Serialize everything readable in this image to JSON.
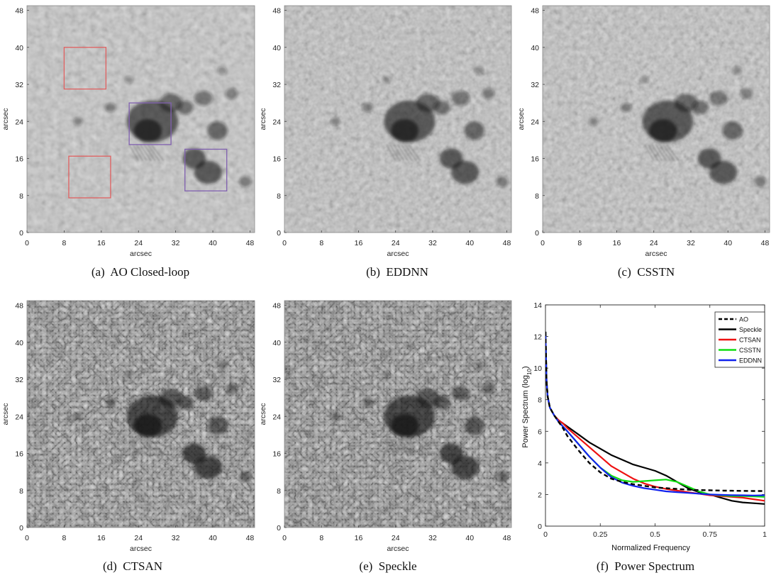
{
  "figure": {
    "captions": {
      "a": "(a)  AO Closed-loop",
      "b": "(b)  EDDNN",
      "c": "(c)  CSSTN",
      "d": "(d)  CTSAN",
      "e": "(e)  Speckle",
      "f": "(f)  Power Spectrum"
    }
  },
  "colors": {
    "AO": "#000000",
    "Speckle": "#000000",
    "CTSAN": "#ee1111",
    "CSSTN": "#11dd11",
    "EDDNN": "#1122ee",
    "roi_red": "#e06060",
    "roi_purple": "#8060b0"
  },
  "chart_data": [
    {
      "type": "heatmap",
      "panel": "a",
      "image": "solar active region (sunspot) observation",
      "xlabel": "arcsec",
      "ylabel": "arcsec",
      "xlim": [
        0,
        49
      ],
      "ylim": [
        0,
        49
      ],
      "xticks": [
        0,
        8,
        16,
        24,
        32,
        40,
        48
      ],
      "yticks": [
        0,
        8,
        16,
        24,
        32,
        40,
        48
      ],
      "annotations": [
        {
          "kind": "box",
          "color": "red",
          "x": [
            8,
            17
          ],
          "y": [
            31,
            40
          ]
        },
        {
          "kind": "box",
          "color": "red",
          "x": [
            9,
            18
          ],
          "y": [
            7.5,
            16.5
          ]
        },
        {
          "kind": "box",
          "color": "purple",
          "x": [
            22,
            31
          ],
          "y": [
            19,
            28
          ]
        },
        {
          "kind": "box",
          "color": "purple",
          "x": [
            34,
            43
          ],
          "y": [
            9,
            18
          ]
        }
      ]
    },
    {
      "type": "heatmap",
      "panel": "b",
      "image": "solar active region (sunspot) observation",
      "xlabel": "arcsec",
      "ylabel": "arcsec",
      "xlim": [
        0,
        49
      ],
      "ylim": [
        0,
        49
      ],
      "xticks": [
        0,
        8,
        16,
        24,
        32,
        40,
        48
      ],
      "yticks": [
        0,
        8,
        16,
        24,
        32,
        40,
        48
      ]
    },
    {
      "type": "heatmap",
      "panel": "c",
      "image": "solar active region (sunspot) observation",
      "xlabel": "arcsec",
      "ylabel": "arcsec",
      "xlim": [
        0,
        49
      ],
      "ylim": [
        0,
        49
      ],
      "xticks": [
        0,
        8,
        16,
        24,
        32,
        40,
        48
      ],
      "yticks": [
        0,
        8,
        16,
        24,
        32,
        40,
        48
      ]
    },
    {
      "type": "heatmap",
      "panel": "d",
      "image": "solar active region (sunspot) observation",
      "xlabel": "arcsec",
      "ylabel": "arcsec",
      "xlim": [
        0,
        49
      ],
      "ylim": [
        0,
        49
      ],
      "xticks": [
        0,
        8,
        16,
        24,
        32,
        40,
        48
      ],
      "yticks": [
        0,
        8,
        16,
        24,
        32,
        40,
        48
      ]
    },
    {
      "type": "heatmap",
      "panel": "e",
      "image": "solar active region (sunspot) observation",
      "xlabel": "arcsec",
      "ylabel": "arcsec",
      "xlim": [
        0,
        49
      ],
      "ylim": [
        0,
        49
      ],
      "xticks": [
        0,
        8,
        16,
        24,
        32,
        40,
        48
      ],
      "yticks": [
        0,
        8,
        16,
        24,
        32,
        40,
        48
      ]
    },
    {
      "type": "line",
      "panel": "f",
      "xlabel": "Normalized Frequency",
      "ylabel": "Power Spectrum (log",
      "ylabel_sub": "10",
      "ylabel_end": ")",
      "xlim": [
        0,
        1
      ],
      "ylim": [
        0,
        14
      ],
      "xticks": [
        0,
        0.25,
        0.5,
        0.75,
        1
      ],
      "xtick_labels": [
        "0",
        "0.25",
        "0.5",
        "0.75",
        "1"
      ],
      "yticks": [
        0,
        2,
        4,
        6,
        8,
        10,
        12,
        14
      ],
      "legend": "top-right",
      "series": [
        {
          "name": "AO",
          "style": "dashed",
          "x": [
            0,
            0.005,
            0.01,
            0.02,
            0.04,
            0.06,
            0.08,
            0.1,
            0.15,
            0.2,
            0.25,
            0.3,
            0.35,
            0.4,
            0.45,
            0.5,
            0.55,
            0.6,
            0.65,
            0.7,
            0.75,
            0.8,
            0.85,
            0.9,
            0.95,
            1.0
          ],
          "y": [
            12.3,
            9.2,
            8.2,
            7.5,
            7.0,
            6.6,
            6.2,
            5.7,
            4.8,
            4.0,
            3.4,
            3.0,
            2.8,
            2.65,
            2.55,
            2.45,
            2.4,
            2.35,
            2.3,
            2.28,
            2.27,
            2.25,
            2.24,
            2.23,
            2.22,
            2.22
          ]
        },
        {
          "name": "Speckle",
          "style": "solid",
          "x": [
            0,
            0.005,
            0.01,
            0.02,
            0.04,
            0.06,
            0.08,
            0.1,
            0.15,
            0.2,
            0.25,
            0.3,
            0.35,
            0.4,
            0.45,
            0.5,
            0.55,
            0.6,
            0.65,
            0.7,
            0.75,
            0.8,
            0.85,
            0.9,
            0.95,
            1.0
          ],
          "y": [
            12.3,
            9.2,
            8.2,
            7.5,
            7.0,
            6.7,
            6.5,
            6.3,
            5.8,
            5.3,
            4.9,
            4.5,
            4.2,
            3.9,
            3.7,
            3.5,
            3.2,
            2.8,
            2.4,
            2.15,
            2.0,
            1.8,
            1.6,
            1.5,
            1.45,
            1.4
          ]
        },
        {
          "name": "CTSAN",
          "style": "solid",
          "x": [
            0,
            0.005,
            0.01,
            0.02,
            0.04,
            0.06,
            0.08,
            0.1,
            0.15,
            0.2,
            0.25,
            0.3,
            0.35,
            0.4,
            0.45,
            0.5,
            0.55,
            0.6,
            0.65,
            0.7,
            0.75,
            0.8,
            0.85,
            0.9,
            0.95,
            1.0
          ],
          "y": [
            12.3,
            9.2,
            8.2,
            7.5,
            7.0,
            6.7,
            6.5,
            6.2,
            5.6,
            5.0,
            4.4,
            3.8,
            3.4,
            3.0,
            2.7,
            2.5,
            2.35,
            2.25,
            2.15,
            2.05,
            1.95,
            1.9,
            1.85,
            1.8,
            1.7,
            1.6
          ]
        },
        {
          "name": "CSSTN",
          "style": "solid",
          "x": [
            0,
            0.005,
            0.01,
            0.02,
            0.04,
            0.06,
            0.08,
            0.1,
            0.15,
            0.2,
            0.25,
            0.3,
            0.35,
            0.4,
            0.45,
            0.5,
            0.55,
            0.6,
            0.65,
            0.7,
            0.75,
            0.8,
            0.85,
            0.9,
            0.95,
            1.0
          ],
          "y": [
            12.3,
            9.2,
            8.2,
            7.5,
            7.0,
            6.6,
            6.3,
            6.0,
            5.2,
            4.4,
            3.7,
            3.2,
            2.9,
            2.8,
            2.85,
            2.9,
            2.95,
            2.8,
            2.5,
            2.2,
            2.0,
            1.95,
            1.9,
            1.9,
            1.88,
            1.85
          ]
        },
        {
          "name": "EDDNN",
          "style": "solid",
          "x": [
            0,
            0.005,
            0.01,
            0.02,
            0.04,
            0.06,
            0.08,
            0.1,
            0.15,
            0.2,
            0.25,
            0.3,
            0.35,
            0.4,
            0.45,
            0.5,
            0.55,
            0.6,
            0.65,
            0.7,
            0.75,
            0.8,
            0.85,
            0.9,
            0.95,
            1.0
          ],
          "y": [
            12.3,
            9.2,
            8.2,
            7.5,
            7.0,
            6.6,
            6.3,
            6.0,
            5.2,
            4.4,
            3.7,
            3.1,
            2.75,
            2.55,
            2.4,
            2.3,
            2.2,
            2.15,
            2.1,
            2.05,
            2.0,
            1.98,
            1.96,
            1.95,
            1.94,
            1.95
          ]
        }
      ]
    }
  ]
}
